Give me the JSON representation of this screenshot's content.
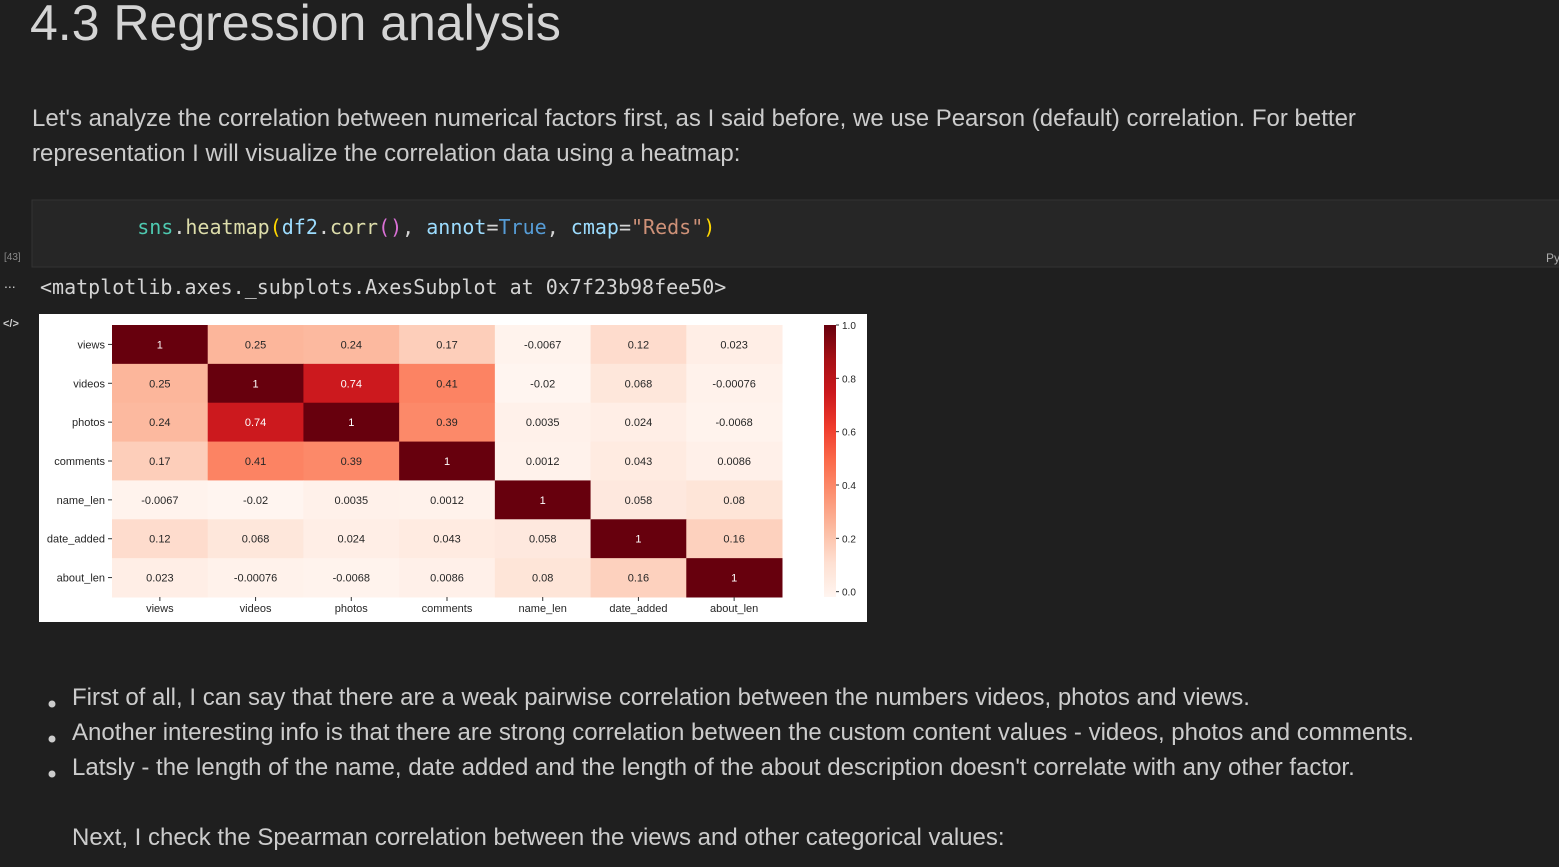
{
  "title": "4.3 Regression analysis",
  "intro": [
    "Let's analyze the correlation between numerical factors first, as I said before, we use Pearson (default) correlation. For better",
    "representation I will visualize the correlation data using a heatmap:"
  ],
  "cell": {
    "execution_count": "[43]",
    "language": "Py",
    "more": "...",
    "code": [
      "sns",
      ".",
      "heatmap",
      "(",
      "df2",
      ".",
      "corr",
      "()",
      ", ",
      "annot",
      "=",
      "True",
      ", ",
      "cmap",
      "=",
      "\"Reds\"",
      ")"
    ],
    "output_icon": "</>",
    "output_text": "<matplotlib.axes._subplots.AxesSubplot at 0x7f23b98fee50>"
  },
  "chart_data": {
    "type": "heatmap",
    "xcategories": [
      "views",
      "videos",
      "photos",
      "comments",
      "name_len",
      "date_added",
      "about_len"
    ],
    "ycategories": [
      "views",
      "videos",
      "photos",
      "comments",
      "name_len",
      "date_added",
      "about_len"
    ],
    "values": [
      [
        1,
        0.25,
        0.24,
        0.17,
        -0.0067,
        0.12,
        0.023
      ],
      [
        0.25,
        1,
        0.74,
        0.41,
        -0.02,
        0.068,
        -0.00076
      ],
      [
        0.24,
        0.74,
        1,
        0.39,
        0.0035,
        0.024,
        -0.0068
      ],
      [
        0.17,
        0.41,
        0.39,
        1,
        0.0012,
        0.043,
        0.0086
      ],
      [
        -0.0067,
        -0.02,
        0.0035,
        0.0012,
        1,
        0.058,
        0.08
      ],
      [
        0.12,
        0.068,
        0.024,
        0.043,
        0.058,
        1,
        0.16
      ],
      [
        0.023,
        -0.00076,
        -0.0068,
        0.0086,
        0.08,
        0.16,
        1
      ]
    ],
    "clim": [
      -0.02,
      1
    ],
    "cticks": [
      {
        "value": 0,
        "label": "0.0"
      },
      {
        "value": 0.2,
        "label": "0.2"
      },
      {
        "value": 0.4,
        "label": "0.4"
      },
      {
        "value": 0.6,
        "label": "0.6"
      },
      {
        "value": 0.8,
        "label": "0.8"
      },
      {
        "value": 1,
        "label": "1.0"
      }
    ],
    "colormap": [
      "#fff5f0",
      "#fee0d2",
      "#fcbba1",
      "#fc9272",
      "#fb6a4a",
      "#ef3b2c",
      "#cb181d",
      "#a50f15",
      "#67000d"
    ]
  },
  "bullets": [
    "First of all, I can say that there are a weak pairwise correlation between the numbers videos, photos and views.",
    "Another interesting info is that there are strong correlation between the custom content values - videos, photos and comments.",
    "Latsly - the length of the name, date added and the length of the about description doesn't correlate with any other factor."
  ],
  "closing": "Next, I check the Spearman correlation between the views and other categorical values:"
}
